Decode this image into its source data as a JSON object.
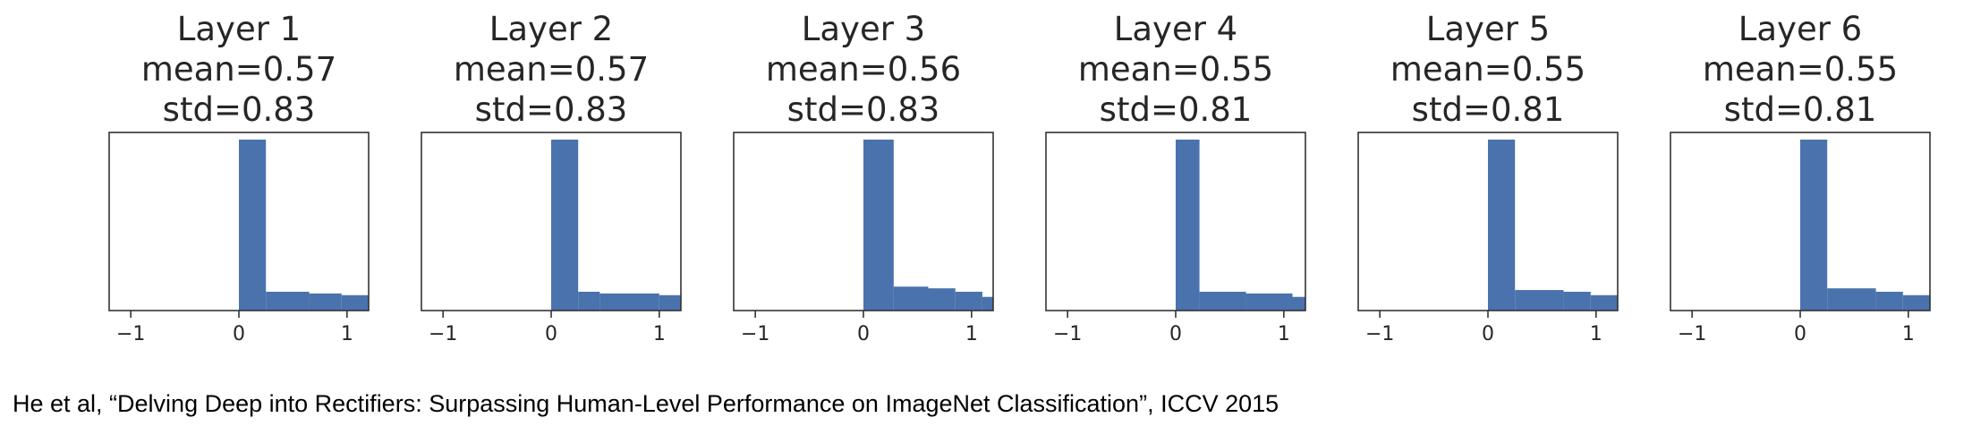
{
  "colors": {
    "bar": "#4a72ad",
    "axis": "#333333",
    "text": "#262626"
  },
  "chart_data": [
    {
      "type": "bar",
      "title": "Layer 1",
      "mean_label": "mean=0.57",
      "std_label": "std=0.83",
      "xlim": [
        -1.2,
        1.2
      ],
      "xticks": [
        -1,
        0,
        1
      ],
      "xtick_labels": [
        "−1",
        "0",
        "1"
      ],
      "y_ticks_visible": false,
      "bins": [
        {
          "x0": 0.0,
          "x1": 0.25,
          "value": 1.0
        },
        {
          "x0": 0.25,
          "x1": 0.65,
          "value": 0.11
        },
        {
          "x0": 0.65,
          "x1": 0.95,
          "value": 0.1
        },
        {
          "x0": 0.95,
          "x1": 1.2,
          "value": 0.09
        }
      ]
    },
    {
      "type": "bar",
      "title": "Layer 2",
      "mean_label": "mean=0.57",
      "std_label": "std=0.83",
      "xlim": [
        -1.2,
        1.2
      ],
      "xticks": [
        -1,
        0,
        1
      ],
      "xtick_labels": [
        "−1",
        "0",
        "1"
      ],
      "y_ticks_visible": false,
      "bins": [
        {
          "x0": 0.0,
          "x1": 0.25,
          "value": 1.0
        },
        {
          "x0": 0.25,
          "x1": 0.45,
          "value": 0.11
        },
        {
          "x0": 0.45,
          "x1": 1.0,
          "value": 0.1
        },
        {
          "x0": 1.0,
          "x1": 1.2,
          "value": 0.09
        }
      ]
    },
    {
      "type": "bar",
      "title": "Layer 3",
      "mean_label": "mean=0.56",
      "std_label": "std=0.83",
      "xlim": [
        -1.2,
        1.2
      ],
      "xticks": [
        -1,
        0,
        1
      ],
      "xtick_labels": [
        "−1",
        "0",
        "1"
      ],
      "y_ticks_visible": false,
      "bins": [
        {
          "x0": 0.0,
          "x1": 0.28,
          "value": 1.0
        },
        {
          "x0": 0.28,
          "x1": 0.6,
          "value": 0.14
        },
        {
          "x0": 0.6,
          "x1": 0.85,
          "value": 0.13
        },
        {
          "x0": 0.85,
          "x1": 1.1,
          "value": 0.11
        },
        {
          "x0": 1.1,
          "x1": 1.2,
          "value": 0.08
        }
      ]
    },
    {
      "type": "bar",
      "title": "Layer 4",
      "mean_label": "mean=0.55",
      "std_label": "std=0.81",
      "xlim": [
        -1.2,
        1.2
      ],
      "xticks": [
        -1,
        0,
        1
      ],
      "xtick_labels": [
        "−1",
        "0",
        "1"
      ],
      "y_ticks_visible": false,
      "bins": [
        {
          "x0": 0.0,
          "x1": 0.22,
          "value": 1.0
        },
        {
          "x0": 0.22,
          "x1": 0.65,
          "value": 0.11
        },
        {
          "x0": 0.65,
          "x1": 1.08,
          "value": 0.1
        },
        {
          "x0": 1.08,
          "x1": 1.2,
          "value": 0.08
        }
      ]
    },
    {
      "type": "bar",
      "title": "Layer 5",
      "mean_label": "mean=0.55",
      "std_label": "std=0.81",
      "xlim": [
        -1.2,
        1.2
      ],
      "xticks": [
        -1,
        0,
        1
      ],
      "xtick_labels": [
        "−1",
        "0",
        "1"
      ],
      "y_ticks_visible": false,
      "bins": [
        {
          "x0": 0.0,
          "x1": 0.25,
          "value": 1.0
        },
        {
          "x0": 0.25,
          "x1": 0.7,
          "value": 0.12
        },
        {
          "x0": 0.7,
          "x1": 0.95,
          "value": 0.11
        },
        {
          "x0": 0.95,
          "x1": 1.2,
          "value": 0.09
        }
      ]
    },
    {
      "type": "bar",
      "title": "Layer 6",
      "mean_label": "mean=0.55",
      "std_label": "std=0.81",
      "xlim": [
        -1.2,
        1.2
      ],
      "xticks": [
        -1,
        0,
        1
      ],
      "xtick_labels": [
        "−1",
        "0",
        "1"
      ],
      "y_ticks_visible": false,
      "bins": [
        {
          "x0": 0.0,
          "x1": 0.25,
          "value": 1.0
        },
        {
          "x0": 0.25,
          "x1": 0.7,
          "value": 0.13
        },
        {
          "x0": 0.7,
          "x1": 0.95,
          "value": 0.11
        },
        {
          "x0": 0.95,
          "x1": 1.2,
          "value": 0.09
        }
      ]
    }
  ],
  "citation": "He et al, “Delving Deep into Rectifiers: Surpassing Human-Level Performance on ImageNet Classification”, ICCV 2015"
}
